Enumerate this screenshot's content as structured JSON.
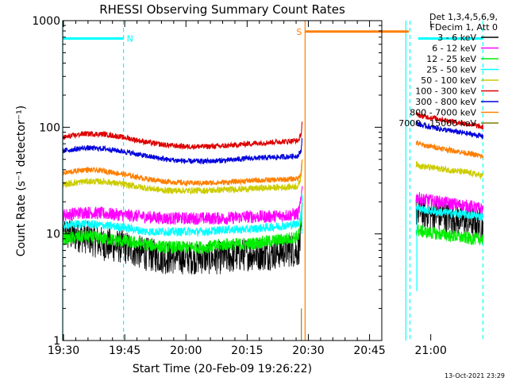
{
  "chart_data": {
    "type": "line",
    "title": "RHESSI Observing Summary Count Rates",
    "xlabel": "Start Time (20-Feb-09 19:26:22)",
    "ylabel": "Count Rate (s⁻¹ detector⁻¹)",
    "yscale": "log",
    "ylim": [
      1,
      1000
    ],
    "xlim_minutes": [
      19.8,
      98.0
    ],
    "x_unit": "minutes after 19:10 UT",
    "x_ticks": [
      {
        "label": "19:30",
        "value": 20
      },
      {
        "label": "19:45",
        "value": 35
      },
      {
        "label": "20:00",
        "value": 50
      },
      {
        "label": "20:15",
        "value": 65
      },
      {
        "label": "20:30",
        "value": 80
      },
      {
        "label": "20:45",
        "value": 95
      },
      {
        "label": "21:00",
        "value": 110
      }
    ],
    "y_ticks": [
      {
        "label": "1",
        "value": 1
      },
      {
        "label": "10",
        "value": 10
      },
      {
        "label": "100",
        "value": 100
      },
      {
        "label": "1000",
        "value": 1000
      }
    ],
    "legend": {
      "header": [
        "Det 1,3,4,5,6,9,",
        "FDecim 1, Att 0"
      ],
      "placement": "right"
    },
    "series": [
      {
        "name": "3 - 6 keV",
        "color": "#000000",
        "noise": 0.16,
        "segments": [
          {
            "x": [
              19.8,
              25,
              30,
              35,
              40,
              45,
              50,
              55,
              60,
              65,
              70,
              75,
              77.5,
              78.2,
              78.5
            ],
            "y": [
              10,
              9.5,
              8,
              7.5,
              6.5,
              6,
              6,
              6,
              6,
              6.5,
              6.5,
              7,
              7,
              9,
              15
            ]
          },
          {
            "x": [
              106.4,
              108,
              112,
              116,
              120,
              122.8
            ],
            "y": [
              17,
              16,
              15,
              14,
              13,
              12
            ]
          }
        ]
      },
      {
        "name": "6 - 12 keV",
        "color": "#ff00ff",
        "noise": 0.06,
        "segments": [
          {
            "x": [
              19.8,
              25,
              30,
              35,
              40,
              45,
              50,
              55,
              60,
              65,
              70,
              75,
              77.5,
              78.2,
              78.5
            ],
            "y": [
              15,
              16,
              15.5,
              15,
              14.5,
              14,
              14,
              14,
              14,
              14.5,
              14.5,
              15,
              15.5,
              20,
              30
            ]
          },
          {
            "x": [
              106.4,
              108,
              112,
              116,
              120,
              122.8
            ],
            "y": [
              22,
              21,
              20,
              19,
              18,
              17
            ]
          }
        ]
      },
      {
        "name": "12 - 25 keV",
        "color": "#00ee00",
        "noise": 0.06,
        "segments": [
          {
            "x": [
              19.8,
              25,
              30,
              35,
              40,
              45,
              50,
              55,
              60,
              65,
              70,
              75,
              77.5,
              78.2,
              78.5
            ],
            "y": [
              9,
              9.5,
              9,
              8.5,
              8,
              7.5,
              7.5,
              7.5,
              8,
              8,
              8.5,
              9,
              9.5,
              12,
              20
            ]
          },
          {
            "x": [
              106.4,
              108,
              112,
              116,
              120,
              122.8
            ],
            "y": [
              11,
              10.5,
              10,
              9.5,
              9,
              9
            ]
          }
        ]
      },
      {
        "name": "25 - 50 keV",
        "color": "#00ffff",
        "noise": 0.04,
        "segments": [
          {
            "x": [
              19.8,
              25,
              30,
              35,
              40,
              45,
              50,
              55,
              60,
              65,
              70,
              75,
              77.5,
              78.2,
              78.5
            ],
            "y": [
              12,
              12.5,
              12,
              11.5,
              10.5,
              10.5,
              10.5,
              10.5,
              11,
              11,
              11.5,
              12,
              12.5,
              15,
              22
            ]
          },
          {
            "x": [
              106.4,
              108,
              112,
              116,
              120,
              122.8
            ],
            "y": [
              18,
              17,
              16,
              15.5,
              15,
              14.5
            ]
          }
        ]
      },
      {
        "name": "50 - 100 keV",
        "color": "#cccc00",
        "noise": 0.03,
        "segments": [
          {
            "x": [
              19.8,
              25,
              30,
              35,
              40,
              45,
              50,
              55,
              60,
              65,
              70,
              75,
              77.5,
              78.2,
              78.5
            ],
            "y": [
              29,
              31,
              31,
              29,
              27,
              25.5,
              25.5,
              25.5,
              26,
              26.5,
              27,
              27.5,
              28,
              34,
              50
            ]
          },
          {
            "x": [
              106.4,
              108,
              112,
              116,
              120,
              122.8
            ],
            "y": [
              45,
              43,
              41,
              39,
              37,
              35
            ]
          }
        ]
      },
      {
        "name": "100 - 300 keV",
        "color": "#dd0000",
        "noise": 0.025,
        "segments": [
          {
            "x": [
              19.8,
              25,
              30,
              35,
              40,
              45,
              50,
              55,
              60,
              65,
              70,
              75,
              77.5,
              78.2,
              78.5
            ],
            "y": [
              80,
              87,
              86,
              80,
              73,
              68,
              66,
              66,
              67,
              70,
              72,
              74,
              75,
              85,
              115
            ]
          },
          {
            "x": [
              106.4,
              108,
              112,
              116,
              120,
              122.8
            ],
            "y": [
              132,
              127,
              120,
              112,
              106,
              100
            ]
          }
        ]
      },
      {
        "name": "300 - 800 keV",
        "color": "#0000dd",
        "noise": 0.025,
        "segments": [
          {
            "x": [
              19.8,
              25,
              30,
              35,
              40,
              45,
              50,
              55,
              60,
              65,
              70,
              75,
              77.5,
              78.2,
              78.5
            ],
            "y": [
              60,
              64,
              63,
              59,
              54,
              50,
              48,
              48,
              49,
              51,
              52,
              53,
              54,
              60,
              80
            ]
          },
          {
            "x": [
              106.4,
              108,
              112,
              116,
              120,
              122.8
            ],
            "y": [
              110,
              104,
              97,
              91,
              86,
              82
            ]
          }
        ]
      },
      {
        "name": "800 - 7000 keV",
        "color": "#ff7f00",
        "noise": 0.025,
        "segments": [
          {
            "x": [
              19.8,
              25,
              30,
              35,
              40,
              45,
              50,
              55,
              60,
              65,
              70,
              75,
              77.5,
              78.2,
              78.5
            ],
            "y": [
              37,
              40,
              39,
              36,
              33,
              31,
              30,
              30,
              30.5,
              31.5,
              32,
              32.5,
              33,
              38,
              50
            ]
          },
          {
            "x": [
              106.4,
              108,
              112,
              116,
              120,
              122.8
            ],
            "y": [
              72,
              68,
              64,
              60,
              56,
              53
            ]
          }
        ]
      },
      {
        "name": "7000 - 15000 keV",
        "color": "#7f7f00",
        "noise": 0,
        "segments": [
          {
            "x": [
              78.3,
              78.3
            ],
            "y": [
              1,
              2
            ]
          }
        ]
      }
    ],
    "spikes": [
      {
        "color": "#00ffff",
        "x": 78.4,
        "y_from": 10,
        "y_to": 24
      },
      {
        "color": "#00ffff",
        "x": 106.6,
        "y_from": 2.9,
        "y_to": 18
      }
    ],
    "flag_bars": [
      {
        "label": "N",
        "color": "#00ffff",
        "x_start": 19.8,
        "x_end": 34.7,
        "y": 680
      },
      {
        "label": "S",
        "color": "#ff7f00",
        "x_start": 79.2,
        "x_end": 104.6,
        "y": 790
      },
      {
        "label": "",
        "color": "#00ffff",
        "x_start": 106.9,
        "x_end": 122.8,
        "y": 680
      }
    ],
    "vertical_markers": [
      {
        "x": 19.8,
        "color": "#00ffff",
        "style": "solid"
      },
      {
        "x": 34.7,
        "color": "#00ffff",
        "style": "dashed"
      },
      {
        "x": 79.2,
        "color": "#ff7f00",
        "style": "solid"
      },
      {
        "x": 103.9,
        "color": "#00ffff",
        "style": "solid"
      },
      {
        "x": 104.9,
        "color": "#00ffff",
        "style": "dashed"
      },
      {
        "x": 122.8,
        "color": "#00ffff",
        "style": "dashed"
      }
    ],
    "footer_date": "13-Oct-2021 23:29"
  }
}
